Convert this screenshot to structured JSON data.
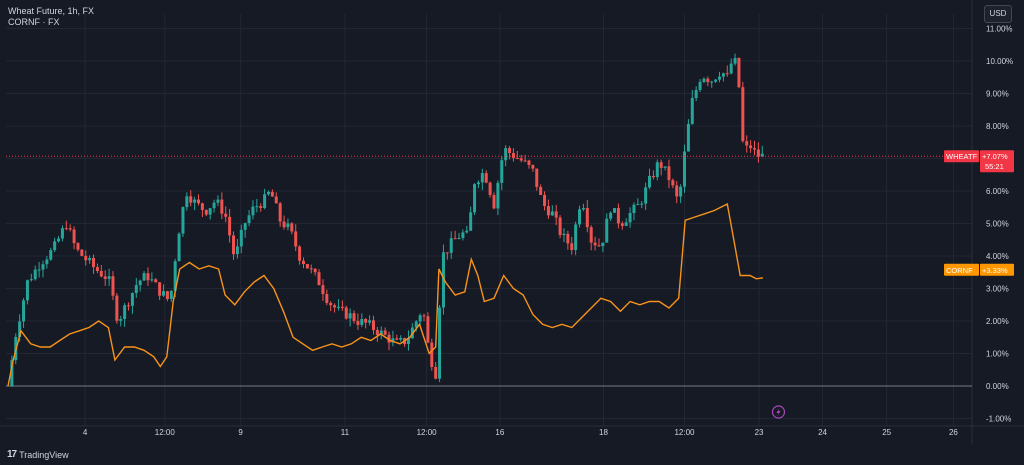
{
  "legend": {
    "main": "Wheat Future, 1h, FX",
    "compare": "CORNF · FX"
  },
  "currency_label": "USD",
  "brand": {
    "logo_glyph": "17",
    "name": "TradingView"
  },
  "colors": {
    "background": "#161a25",
    "up": "#26a69a",
    "down": "#ef5350",
    "corn_line": "#f7931a",
    "grid": "#232734",
    "axis_text": "#d1d4dc",
    "wheat_badge": "#f23645",
    "corn_badge": "#ff9800"
  },
  "chart_data": {
    "type": "line",
    "title": "Wheat Future, 1h, FX",
    "xlabel": "",
    "ylabel": "",
    "ylim": [
      -1.0,
      11.0
    ],
    "y_unit": "%",
    "x_range_days": [
      0,
      26.5
    ],
    "grid": true,
    "y_ticks": [
      "11.00%",
      "10.00%",
      "9.00%",
      "8.00%",
      "7.00%",
      "6.00%",
      "5.00%",
      "4.00%",
      "3.00%",
      "2.00%",
      "1.00%",
      "0.00%",
      "-1.00%"
    ],
    "y_tick_values": [
      11,
      10,
      9,
      8,
      7,
      6,
      5,
      4,
      3,
      2,
      1,
      0,
      -1
    ],
    "x_ticks": [
      {
        "label": "4",
        "t": 1.19
      },
      {
        "label": "12:00",
        "t": 2.42
      },
      {
        "label": "9",
        "t": 3.59
      },
      {
        "label": "11",
        "t": 5.2
      },
      {
        "label": "12:00",
        "t": 6.46
      },
      {
        "label": "16",
        "t": 7.59
      },
      {
        "label": "18",
        "t": 9.19
      },
      {
        "label": "12:00",
        "t": 10.44
      },
      {
        "label": "23",
        "t": 11.59
      },
      {
        "label": "24",
        "t": 12.57
      },
      {
        "label": "25",
        "t": 13.56
      },
      {
        "label": "26",
        "t": 14.59
      }
    ],
    "series": [
      {
        "name": "WHEATF",
        "style": "candles",
        "last_label": "+7.07%",
        "countdown": "55:21",
        "points": [
          [
            0.0,
            0.0
          ],
          [
            0.12,
            1.6
          ],
          [
            0.3,
            3.2
          ],
          [
            0.5,
            3.8
          ],
          [
            0.7,
            4.2
          ],
          [
            0.9,
            5.0
          ],
          [
            1.05,
            4.2
          ],
          [
            1.2,
            3.9
          ],
          [
            1.35,
            3.6
          ],
          [
            1.55,
            3.3
          ],
          [
            1.7,
            2.0
          ],
          [
            1.85,
            2.6
          ],
          [
            2.0,
            3.2
          ],
          [
            2.15,
            3.4
          ],
          [
            2.35,
            2.9
          ],
          [
            2.5,
            2.6
          ],
          [
            2.62,
            4.6
          ],
          [
            2.75,
            6.0
          ],
          [
            2.9,
            5.6
          ],
          [
            3.05,
            5.4
          ],
          [
            3.2,
            5.7
          ],
          [
            3.35,
            5.3
          ],
          [
            3.5,
            3.9
          ],
          [
            3.65,
            5.0
          ],
          [
            3.8,
            5.5
          ],
          [
            3.95,
            5.7
          ],
          [
            4.05,
            6.0
          ],
          [
            4.2,
            5.1
          ],
          [
            4.35,
            4.8
          ],
          [
            4.5,
            4.0
          ],
          [
            4.65,
            3.6
          ],
          [
            4.8,
            3.2
          ],
          [
            4.95,
            2.6
          ],
          [
            5.1,
            2.3
          ],
          [
            5.25,
            2.2
          ],
          [
            5.4,
            2.0
          ],
          [
            5.55,
            1.9
          ],
          [
            5.7,
            1.7
          ],
          [
            5.85,
            1.5
          ],
          [
            6.0,
            1.3
          ],
          [
            6.15,
            1.4
          ],
          [
            6.3,
            2.0
          ],
          [
            6.4,
            2.4
          ],
          [
            6.5,
            1.0
          ],
          [
            6.6,
            0.4
          ],
          [
            6.7,
            4.0
          ],
          [
            6.85,
            4.4
          ],
          [
            7.0,
            4.7
          ],
          [
            7.1,
            4.6
          ],
          [
            7.2,
            6.3
          ],
          [
            7.35,
            6.6
          ],
          [
            7.5,
            5.6
          ],
          [
            7.65,
            7.3
          ],
          [
            7.8,
            7.1
          ],
          [
            7.95,
            6.9
          ],
          [
            8.1,
            6.6
          ],
          [
            8.25,
            5.6
          ],
          [
            8.4,
            5.3
          ],
          [
            8.55,
            4.6
          ],
          [
            8.7,
            4.3
          ],
          [
            8.85,
            5.9
          ],
          [
            9.0,
            4.5
          ],
          [
            9.15,
            4.3
          ],
          [
            9.3,
            5.5
          ],
          [
            9.45,
            5.0
          ],
          [
            9.6,
            5.3
          ],
          [
            9.75,
            5.6
          ],
          [
            9.9,
            6.3
          ],
          [
            10.05,
            6.9
          ],
          [
            10.2,
            6.4
          ],
          [
            10.35,
            5.6
          ],
          [
            10.45,
            7.3
          ],
          [
            10.55,
            8.7
          ],
          [
            10.7,
            9.6
          ],
          [
            10.85,
            9.4
          ],
          [
            11.0,
            9.7
          ],
          [
            11.1,
            9.5
          ],
          [
            11.2,
            10.2
          ],
          [
            11.28,
            9.2
          ],
          [
            11.35,
            7.2
          ],
          [
            11.45,
            7.4
          ],
          [
            11.55,
            7.1
          ],
          [
            11.65,
            7.07
          ]
        ]
      },
      {
        "name": "CORNF",
        "style": "line",
        "last_label": "+3.33%",
        "points": [
          [
            0.0,
            0.0
          ],
          [
            0.08,
            0.8
          ],
          [
            0.2,
            1.7
          ],
          [
            0.35,
            1.3
          ],
          [
            0.5,
            1.2
          ],
          [
            0.65,
            1.2
          ],
          [
            0.8,
            1.4
          ],
          [
            0.95,
            1.6
          ],
          [
            1.1,
            1.7
          ],
          [
            1.25,
            1.8
          ],
          [
            1.4,
            2.0
          ],
          [
            1.55,
            1.8
          ],
          [
            1.65,
            0.8
          ],
          [
            1.8,
            1.2
          ],
          [
            1.95,
            1.2
          ],
          [
            2.1,
            1.1
          ],
          [
            2.25,
            0.9
          ],
          [
            2.35,
            0.6
          ],
          [
            2.45,
            0.9
          ],
          [
            2.55,
            2.6
          ],
          [
            2.65,
            3.6
          ],
          [
            2.8,
            3.8
          ],
          [
            2.95,
            3.6
          ],
          [
            3.1,
            3.7
          ],
          [
            3.25,
            3.6
          ],
          [
            3.35,
            2.8
          ],
          [
            3.5,
            2.5
          ],
          [
            3.65,
            2.9
          ],
          [
            3.8,
            3.2
          ],
          [
            3.95,
            3.4
          ],
          [
            4.1,
            3.0
          ],
          [
            4.25,
            2.3
          ],
          [
            4.4,
            1.5
          ],
          [
            4.55,
            1.3
          ],
          [
            4.7,
            1.1
          ],
          [
            4.85,
            1.2
          ],
          [
            5.0,
            1.3
          ],
          [
            5.15,
            1.2
          ],
          [
            5.3,
            1.3
          ],
          [
            5.45,
            1.5
          ],
          [
            5.6,
            1.4
          ],
          [
            5.75,
            1.6
          ],
          [
            5.9,
            1.4
          ],
          [
            6.05,
            1.3
          ],
          [
            6.2,
            1.5
          ],
          [
            6.35,
            1.9
          ],
          [
            6.5,
            1.0
          ],
          [
            6.6,
            1.2
          ],
          [
            6.65,
            3.6
          ],
          [
            6.75,
            3.2
          ],
          [
            6.9,
            2.8
          ],
          [
            7.05,
            2.9
          ],
          [
            7.15,
            3.9
          ],
          [
            7.25,
            3.4
          ],
          [
            7.35,
            2.6
          ],
          [
            7.5,
            2.7
          ],
          [
            7.65,
            3.4
          ],
          [
            7.8,
            3.0
          ],
          [
            7.95,
            2.8
          ],
          [
            8.1,
            2.2
          ],
          [
            8.25,
            1.9
          ],
          [
            8.4,
            1.8
          ],
          [
            8.55,
            1.9
          ],
          [
            8.7,
            1.8
          ],
          [
            8.85,
            2.1
          ],
          [
            9.0,
            2.4
          ],
          [
            9.15,
            2.7
          ],
          [
            9.3,
            2.6
          ],
          [
            9.45,
            2.3
          ],
          [
            9.6,
            2.6
          ],
          [
            9.75,
            2.5
          ],
          [
            9.9,
            2.6
          ],
          [
            10.05,
            2.6
          ],
          [
            10.2,
            2.4
          ],
          [
            10.35,
            2.7
          ],
          [
            10.45,
            5.1
          ],
          [
            10.6,
            5.2
          ],
          [
            10.75,
            5.3
          ],
          [
            10.9,
            5.4
          ],
          [
            11.0,
            5.5
          ],
          [
            11.1,
            5.6
          ],
          [
            11.2,
            4.5
          ],
          [
            11.3,
            3.4
          ],
          [
            11.45,
            3.4
          ],
          [
            11.55,
            3.3
          ],
          [
            11.65,
            3.33
          ]
        ]
      }
    ]
  }
}
